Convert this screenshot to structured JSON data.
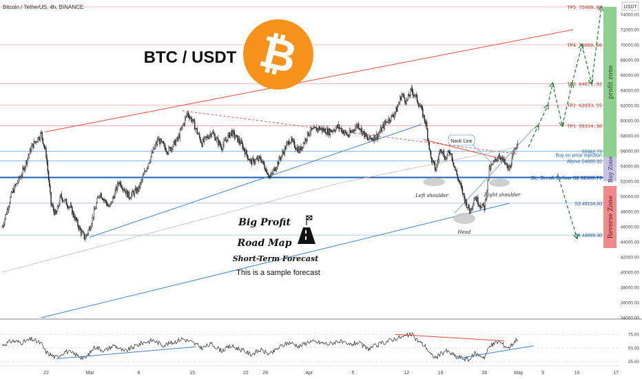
{
  "chart_data": {
    "type": "candlestick",
    "title": "Bitcoin / TetherUS, 4h, BINANCE",
    "symbol_label": "BTC / USDT",
    "currency": "USDT",
    "ylim": [
      34000,
      75500
    ],
    "y_ticks": [
      74000,
      72000,
      70000,
      68000,
      66000,
      64000,
      62000,
      60000,
      58000,
      56000,
      54000,
      52000,
      50000,
      48000,
      46000,
      44000,
      42000,
      40000,
      38000,
      36000,
      34000
    ],
    "y_tick_labels": [
      "74000.00",
      "72000.00",
      "70000.00",
      "68000.00",
      "66000.00",
      "64000.00",
      "62000.00",
      "60000.00",
      "58000.00",
      "56000.00",
      "54000.00",
      "52000.00",
      "50000.00",
      "48000.00",
      "46000.00",
      "44000.00",
      "42000.00",
      "40000.00",
      "38000.00",
      "36000.00",
      "34000.00"
    ],
    "x_ticks": [
      {
        "day": 0,
        "label": "22"
      },
      {
        "day": 9,
        "label": "Mar"
      },
      {
        "day": 19,
        "label": "8"
      },
      {
        "day": 30,
        "label": "15"
      },
      {
        "day": 41,
        "label": "22"
      },
      {
        "day": 45,
        "label": "26"
      },
      {
        "day": 54,
        "label": "Apr"
      },
      {
        "day": 63,
        "label": "5"
      },
      {
        "day": 74,
        "label": "12"
      },
      {
        "day": 81,
        "label": "19"
      },
      {
        "day": 90,
        "label": "26"
      },
      {
        "day": 97,
        "label": "May"
      },
      {
        "day": 102,
        "label": "5"
      },
      {
        "day": 109,
        "label": "10"
      },
      {
        "day": 117,
        "label": "17"
      }
    ],
    "price_path": [
      {
        "day": -9,
        "price": 46000
      },
      {
        "day": -7,
        "price": 50500
      },
      {
        "day": -5,
        "price": 53000
      },
      {
        "day": -3,
        "price": 56500
      },
      {
        "day": -1,
        "price": 58300
      },
      {
        "day": 0,
        "price": 55500
      },
      {
        "day": 1,
        "price": 49000
      },
      {
        "day": 2,
        "price": 47500
      },
      {
        "day": 3,
        "price": 50000
      },
      {
        "day": 5,
        "price": 48500
      },
      {
        "day": 7,
        "price": 45500
      },
      {
        "day": 8,
        "price": 44500
      },
      {
        "day": 9,
        "price": 46000
      },
      {
        "day": 11,
        "price": 50500
      },
      {
        "day": 13,
        "price": 48500
      },
      {
        "day": 15,
        "price": 52000
      },
      {
        "day": 17,
        "price": 50000
      },
      {
        "day": 19,
        "price": 51000
      },
      {
        "day": 21,
        "price": 54500
      },
      {
        "day": 23,
        "price": 57500
      },
      {
        "day": 25,
        "price": 56000
      },
      {
        "day": 27,
        "price": 57500
      },
      {
        "day": 29,
        "price": 61000
      },
      {
        "day": 30,
        "price": 60000
      },
      {
        "day": 32,
        "price": 57000
      },
      {
        "day": 34,
        "price": 58500
      },
      {
        "day": 36,
        "price": 56500
      },
      {
        "day": 38,
        "price": 58500
      },
      {
        "day": 40,
        "price": 57000
      },
      {
        "day": 42,
        "price": 54500
      },
      {
        "day": 44,
        "price": 55000
      },
      {
        "day": 46,
        "price": 52500
      },
      {
        "day": 48,
        "price": 55000
      },
      {
        "day": 50,
        "price": 57500
      },
      {
        "day": 52,
        "price": 56000
      },
      {
        "day": 54,
        "price": 58500
      },
      {
        "day": 56,
        "price": 59000
      },
      {
        "day": 58,
        "price": 58500
      },
      {
        "day": 60,
        "price": 59200
      },
      {
        "day": 62,
        "price": 58000
      },
      {
        "day": 64,
        "price": 59500
      },
      {
        "day": 66,
        "price": 57500
      },
      {
        "day": 68,
        "price": 58000
      },
      {
        "day": 70,
        "price": 60000
      },
      {
        "day": 71,
        "price": 60500
      },
      {
        "day": 72,
        "price": 61500
      },
      {
        "day": 73,
        "price": 63500
      },
      {
        "day": 74,
        "price": 62500
      },
      {
        "day": 75,
        "price": 64000
      },
      {
        "day": 76,
        "price": 63000
      },
      {
        "day": 77,
        "price": 61500
      },
      {
        "day": 78,
        "price": 59500
      },
      {
        "day": 79,
        "price": 55000
      },
      {
        "day": 80,
        "price": 53500
      },
      {
        "day": 81,
        "price": 56500
      },
      {
        "day": 82,
        "price": 55000
      },
      {
        "day": 83,
        "price": 56000
      },
      {
        "day": 84,
        "price": 53500
      },
      {
        "day": 85,
        "price": 51500
      },
      {
        "day": 86,
        "price": 49500
      },
      {
        "day": 87,
        "price": 48000
      },
      {
        "day": 88,
        "price": 50000
      },
      {
        "day": 89,
        "price": 49000
      },
      {
        "day": 90,
        "price": 48500
      },
      {
        "day": 91,
        "price": 53500
      },
      {
        "day": 92,
        "price": 54500
      },
      {
        "day": 93,
        "price": 55500
      },
      {
        "day": 94,
        "price": 54500
      },
      {
        "day": 95,
        "price": 53500
      },
      {
        "day": 96,
        "price": 55500
      },
      {
        "day": 97,
        "price": 57800
      }
    ],
    "levels": [
      {
        "price": 75000.0,
        "label": "TP5 75000.00",
        "kind": "tp"
      },
      {
        "price": 70000.0,
        "label": "TP4 70000.00",
        "kind": "tp"
      },
      {
        "price": 64871.92,
        "label": "TP3 64871.92",
        "kind": "tp"
      },
      {
        "price": 62033.55,
        "label": "TP2 62033.55",
        "kind": "tp"
      },
      {
        "price": 59314.3,
        "label": "TP1 59314.30",
        "kind": "tp"
      },
      {
        "price": 55962.75,
        "label": "55962.75",
        "kind": "entry"
      },
      {
        "price": 54680.92,
        "label": "Above 54680.92",
        "kind": "entry"
      },
      {
        "price": 52500.79,
        "label": "SL: Break Below S2 52500.79",
        "kind": "sl"
      },
      {
        "price": 49104.0,
        "label": "S3 49104.00",
        "kind": "support"
      },
      {
        "price": 44899.3,
        "label": "S4 44899.30",
        "kind": "support"
      }
    ],
    "buy_note": "Buy on price rejection",
    "zones": {
      "profit": "profit zone",
      "buy": "Buy Zone",
      "reverse": "Reverse Zone"
    },
    "annotations": {
      "neck_line": "Neck Line",
      "left_shoulder": "Left shoulder",
      "head": "Head",
      "right_shoulder": "Right shoulder",
      "big_profit": "Big Profit",
      "road_map": "Road Map",
      "short_term": "Short-Term Forecast",
      "sample": "This is a sample forecast"
    },
    "forecast_path": [
      {
        "day": 99,
        "price": 56500
      },
      {
        "day": 101,
        "price": 59300
      },
      {
        "day": 103,
        "price": 62000
      },
      {
        "day": 104,
        "price": 64900
      },
      {
        "day": 106,
        "price": 59300
      },
      {
        "day": 108,
        "price": 64900
      },
      {
        "day": 110,
        "price": 70000
      },
      {
        "day": 112,
        "price": 64900
      },
      {
        "day": 114,
        "price": 75000
      }
    ],
    "down_arrow": [
      {
        "day": 105,
        "price": 53000
      },
      {
        "day": 109,
        "price": 44500
      }
    ],
    "rsi": {
      "y_ticks": [
        75,
        50,
        25
      ],
      "y_tick_labels": [
        "75.00",
        "50.00",
        "25.00"
      ],
      "ylim": [
        18,
        88
      ],
      "path": [
        {
          "day": -9,
          "price": 55
        },
        {
          "day": -7,
          "price": 63
        },
        {
          "day": -5,
          "price": 60
        },
        {
          "day": -3,
          "price": 66
        },
        {
          "day": -1,
          "price": 58
        },
        {
          "day": 0,
          "price": 42
        },
        {
          "day": 2,
          "price": 32
        },
        {
          "day": 4,
          "price": 44
        },
        {
          "day": 6,
          "price": 38
        },
        {
          "day": 8,
          "price": 30
        },
        {
          "day": 10,
          "price": 52
        },
        {
          "day": 12,
          "price": 45
        },
        {
          "day": 14,
          "price": 55
        },
        {
          "day": 16,
          "price": 43
        },
        {
          "day": 18,
          "price": 52
        },
        {
          "day": 20,
          "price": 60
        },
        {
          "day": 22,
          "price": 64
        },
        {
          "day": 24,
          "price": 55
        },
        {
          "day": 26,
          "price": 60
        },
        {
          "day": 28,
          "price": 67
        },
        {
          "day": 30,
          "price": 60
        },
        {
          "day": 32,
          "price": 50
        },
        {
          "day": 34,
          "price": 57
        },
        {
          "day": 36,
          "price": 45
        },
        {
          "day": 38,
          "price": 53
        },
        {
          "day": 40,
          "price": 47
        },
        {
          "day": 42,
          "price": 38
        },
        {
          "day": 44,
          "price": 46
        },
        {
          "day": 46,
          "price": 38
        },
        {
          "day": 48,
          "price": 52
        },
        {
          "day": 50,
          "price": 60
        },
        {
          "day": 52,
          "price": 53
        },
        {
          "day": 54,
          "price": 62
        },
        {
          "day": 56,
          "price": 60
        },
        {
          "day": 58,
          "price": 57
        },
        {
          "day": 60,
          "price": 63
        },
        {
          "day": 62,
          "price": 55
        },
        {
          "day": 64,
          "price": 60
        },
        {
          "day": 66,
          "price": 48
        },
        {
          "day": 68,
          "price": 55
        },
        {
          "day": 70,
          "price": 62
        },
        {
          "day": 72,
          "price": 68
        },
        {
          "day": 74,
          "price": 72
        },
        {
          "day": 75,
          "price": 75
        },
        {
          "day": 76,
          "price": 66
        },
        {
          "day": 78,
          "price": 52
        },
        {
          "day": 79,
          "price": 37
        },
        {
          "day": 80,
          "price": 32
        },
        {
          "day": 82,
          "price": 45
        },
        {
          "day": 84,
          "price": 35
        },
        {
          "day": 86,
          "price": 30
        },
        {
          "day": 87,
          "price": 28
        },
        {
          "day": 88,
          "price": 40
        },
        {
          "day": 90,
          "price": 33
        },
        {
          "day": 91,
          "price": 52
        },
        {
          "day": 92,
          "price": 58
        },
        {
          "day": 93,
          "price": 62
        },
        {
          "day": 94,
          "price": 55
        },
        {
          "day": 95,
          "price": 50
        },
        {
          "day": 96,
          "price": 60
        },
        {
          "day": 97,
          "price": 70
        }
      ]
    }
  },
  "colors": {
    "tp_line": "#f2a1a1",
    "trend_red": "#e0493c",
    "trend_blue": "#3b82c8",
    "level_blue": "#1e5fb4",
    "entry_blue": "#6fa3d8",
    "forecast_green": "#1b7a2e",
    "profit_zone": "#8fcf8f",
    "buy_zone": "#c9c3e3",
    "reverse_zone": "#f08a8a",
    "bitcoin_orange": "#f7931a",
    "candle_dark": "#202020"
  },
  "icons": {
    "logo": "bitcoin-icon",
    "road": "road-icon"
  }
}
